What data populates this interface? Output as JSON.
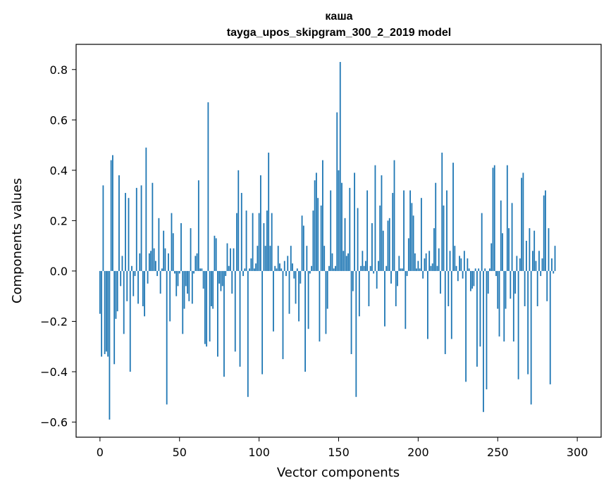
{
  "chart_data": {
    "type": "bar",
    "title": "каша",
    "subtitle": "tayga_upos_skipgram_300_2_2019 model",
    "xlabel": "Vector components",
    "ylabel": "Components values",
    "xlim": [
      -15,
      315
    ],
    "ylim": [
      -0.66,
      0.9
    ],
    "x_ticks": [
      0,
      50,
      100,
      150,
      200,
      250,
      300
    ],
    "y_ticks": [
      -0.6,
      -0.4,
      -0.2,
      0.0,
      0.2,
      0.4,
      0.6,
      0.8
    ],
    "y_tick_labels": [
      "−0.6",
      "−0.4",
      "−0.2",
      "0.0",
      "0.2",
      "0.4",
      "0.6",
      "0.8"
    ],
    "grid": false,
    "bar_color": "#1f77b4",
    "values": [
      -0.17,
      -0.34,
      0.34,
      -0.33,
      -0.32,
      -0.34,
      -0.59,
      0.44,
      0.46,
      -0.37,
      -0.19,
      -0.16,
      0.38,
      -0.06,
      0.06,
      -0.25,
      0.31,
      -0.12,
      0.29,
      -0.4,
      0.02,
      -0.1,
      -0.02,
      0.33,
      -0.13,
      0.07,
      0.34,
      -0.14,
      -0.18,
      0.49,
      -0.05,
      0.07,
      0.08,
      0.35,
      0.09,
      0.04,
      -0.02,
      0.21,
      -0.09,
      0.01,
      0.16,
      0.09,
      -0.53,
      0.07,
      -0.2,
      0.23,
      0.15,
      -0.01,
      -0.1,
      -0.06,
      -0.01,
      0.19,
      -0.25,
      -0.15,
      -0.06,
      -0.09,
      -0.12,
      0.17,
      -0.13,
      -0.01,
      0.06,
      0.07,
      0.36,
      0.01,
      0.01,
      -0.07,
      -0.29,
      -0.3,
      0.67,
      -0.28,
      -0.14,
      -0.15,
      0.14,
      0.13,
      -0.34,
      -0.05,
      -0.08,
      -0.06,
      -0.42,
      -0.02,
      0.11,
      0.02,
      0.09,
      -0.09,
      0.09,
      -0.32,
      0.23,
      0.4,
      -0.38,
      0.31,
      -0.02,
      0.01,
      0.24,
      -0.5,
      0.01,
      0.05,
      0.23,
      0.01,
      0.03,
      0.1,
      0.23,
      0.38,
      -0.41,
      0.19,
      0.1,
      0.24,
      0.47,
      0.1,
      0.23,
      -0.24,
      0.02,
      0.01,
      0.1,
      0.03,
      0.01,
      -0.35,
      0.04,
      -0.02,
      0.06,
      -0.17,
      0.1,
      0.03,
      -0.03,
      -0.13,
      0.01,
      -0.2,
      -0.05,
      0.22,
      0.18,
      -0.4,
      0.1,
      -0.23,
      -0.01,
      0.02,
      0.24,
      0.36,
      0.39,
      0.29,
      -0.28,
      0.26,
      0.44,
      0.1,
      -0.25,
      -0.15,
      0.02,
      0.32,
      0.07,
      0.01,
      0.02,
      0.63,
      0.4,
      0.83,
      0.35,
      0.08,
      0.21,
      0.06,
      0.07,
      0.33,
      -0.33,
      -0.08,
      0.39,
      -0.5,
      0.25,
      -0.18,
      0.02,
      0.08,
      0.02,
      0.04,
      0.32,
      -0.14,
      0.02,
      0.19,
      -0.01,
      0.42,
      -0.07,
      0.04,
      0.26,
      0.38,
      0.16,
      -0.22,
      0.02,
      0.2,
      0.21,
      -0.05,
      0.31,
      0.44,
      -0.14,
      -0.06,
      0.06,
      0.01,
      0.01,
      0.32,
      -0.23,
      -0.02,
      0.13,
      0.32,
      0.27,
      0.22,
      0.07,
      0.01,
      0.04,
      0.01,
      0.29,
      -0.03,
      0.05,
      0.07,
      -0.27,
      0.08,
      0.02,
      0.03,
      0.17,
      0.35,
      0.02,
      0.09,
      -0.09,
      0.47,
      0.26,
      -0.33,
      0.32,
      -0.14,
      0.08,
      -0.27,
      0.43,
      0.1,
      0.02,
      -0.04,
      0.06,
      0.05,
      -0.03,
      0.08,
      -0.44,
      0.05,
      0.01,
      -0.08,
      -0.07,
      -0.06,
      0.01,
      -0.38,
      0.01,
      -0.3,
      0.23,
      -0.56,
      0.01,
      -0.47,
      -0.09,
      0.01,
      0.11,
      0.41,
      0.42,
      -0.02,
      -0.15,
      -0.26,
      0.28,
      0.15,
      -0.28,
      -0.15,
      0.42,
      0.17,
      -0.11,
      0.27,
      -0.28,
      -0.09,
      0.06,
      -0.43,
      0.05,
      0.37,
      0.39,
      -0.14,
      0.12,
      -0.41,
      0.17,
      -0.53,
      0.08,
      0.16,
      0.04,
      -0.14,
      0.08,
      -0.02,
      0.05,
      0.3,
      0.32,
      -0.12,
      0.17,
      -0.45,
      0.05,
      -0.01,
      0.1
    ]
  }
}
